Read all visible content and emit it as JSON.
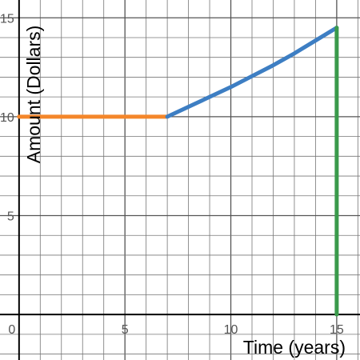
{
  "chart_data": {
    "type": "line",
    "xlabel": "Time (years)",
    "ylabel": "Amount (Dollars)",
    "xlim": [
      -0.9,
      16.1
    ],
    "ylim": [
      -2.3,
      15.9
    ],
    "grid": true,
    "grid_minor_step": 1,
    "x_ticks": [
      0,
      5,
      10,
      15
    ],
    "x_tick_labels": [
      "0",
      "5",
      "10",
      "15"
    ],
    "y_ticks": [
      5,
      10,
      15
    ],
    "y_tick_labels": [
      "5",
      "10",
      "15"
    ],
    "series": [
      {
        "color": "#f4862a",
        "x": [
          0,
          7
        ],
        "y": [
          10,
          10
        ]
      },
      {
        "color": "#3d7ec3",
        "x": [
          7,
          8,
          9,
          10,
          11,
          12,
          13,
          14,
          15
        ],
        "y": [
          10.0,
          10.5,
          11.0,
          11.5,
          12.05,
          12.6,
          13.2,
          13.85,
          14.5
        ]
      },
      {
        "color": "#3a9a4b",
        "x": [
          15,
          15
        ],
        "y": [
          0,
          14.5
        ]
      }
    ]
  }
}
